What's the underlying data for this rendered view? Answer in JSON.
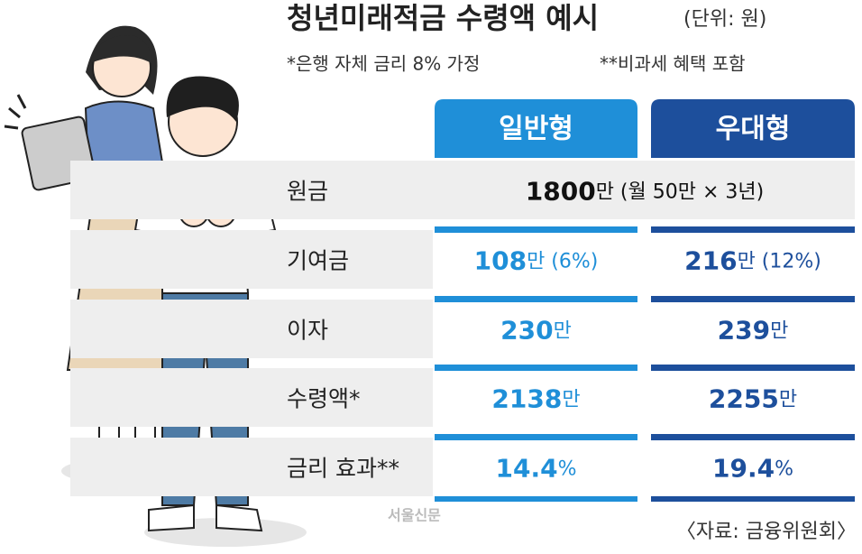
{
  "header": {
    "title": "청년미래적금 수령액 예시",
    "unit": "(단위: 원)",
    "notes": [
      "*은행 자체 금리 8% 가정",
      "**비과세 혜택 포함"
    ]
  },
  "table": {
    "columns": [
      "일반형",
      "우대형"
    ],
    "rows": [
      {
        "label": "원금",
        "merged": [
          "1800",
          "만 (월 50만 × 3년)"
        ]
      },
      {
        "label": "기여금",
        "cells": [
          [
            "108",
            "만 (6%)"
          ],
          [
            "216",
            "만 (12%)"
          ]
        ]
      },
      {
        "label": "이자",
        "cells": [
          [
            "230",
            "만"
          ],
          [
            "239",
            "만"
          ]
        ]
      },
      {
        "label": "수령액*",
        "cells": [
          [
            "2138",
            "만"
          ],
          [
            "2255",
            "만"
          ]
        ]
      },
      {
        "label": "금리 효과**",
        "cells": [
          [
            "14.4",
            "%"
          ],
          [
            "19.4",
            "%"
          ]
        ]
      }
    ]
  },
  "footer": {
    "watermark": "서울신문",
    "source": "〈자료: 금융위원회〉"
  }
}
